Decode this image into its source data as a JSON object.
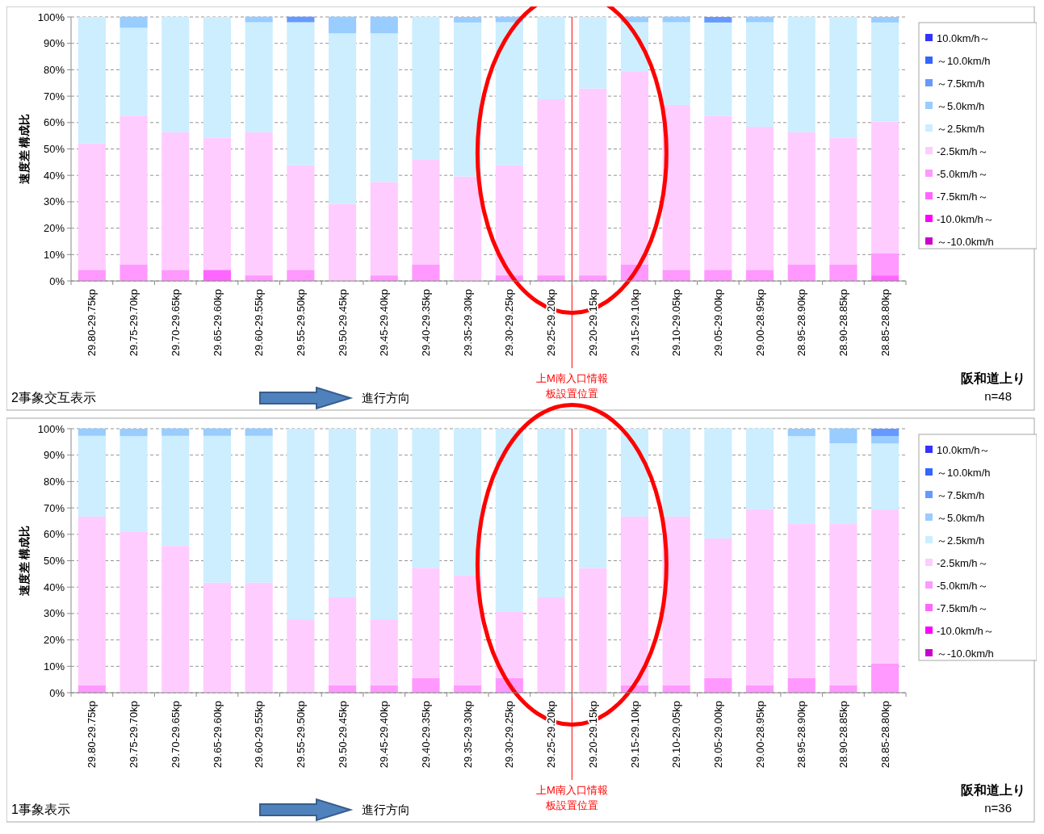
{
  "chart_data": [
    {
      "type": "bar",
      "stacked": true,
      "ylabel": "速度差 構成比",
      "ylim": [
        0,
        100
      ],
      "grid": "y",
      "legend": "right",
      "yticks": [
        {
          "value": 0,
          "label": "0%"
        },
        {
          "value": 10,
          "label": "10%"
        },
        {
          "value": 20,
          "label": "20%"
        },
        {
          "value": 30,
          "label": "30%"
        },
        {
          "value": 40,
          "label": "40%"
        },
        {
          "value": 50,
          "label": "50%"
        },
        {
          "value": 60,
          "label": "60%"
        },
        {
          "value": 70,
          "label": "70%"
        },
        {
          "value": 80,
          "label": "80%"
        },
        {
          "value": 90,
          "label": "90%"
        },
        {
          "value": 100,
          "label": "100%"
        }
      ],
      "categories": [
        "29.80-29.75kp",
        "29.75-29.70kp",
        "29.70-29.65kp",
        "29.65-29.60kp",
        "29.60-29.55kp",
        "29.55-29.50kp",
        "29.50-29.45kp",
        "29.45-29.40kp",
        "29.40-29.35kp",
        "29.35-29.30kp",
        "29.30-29.25kp",
        "29.25-29.20kp",
        "29.20-29.15kp",
        "29.15-29.10kp",
        "29.10-29.05kp",
        "29.05-29.00kp",
        "29.00-28.95kp",
        "28.95-28.90kp",
        "28.90-28.85kp",
        "28.85-28.80kp"
      ],
      "series": [
        {
          "name": "～-10.0km/h",
          "color": "#cc00cc",
          "values": [
            0,
            0,
            0,
            0,
            0,
            0,
            0,
            0,
            0,
            0,
            0,
            0,
            0,
            0,
            0,
            0,
            0,
            0,
            0,
            0
          ]
        },
        {
          "name": "-10.0km/h～",
          "color": "#ff00ff",
          "values": [
            0,
            0,
            0,
            0,
            0,
            0,
            0,
            0,
            0,
            0,
            0,
            0,
            0,
            0,
            0,
            0,
            0,
            0,
            0,
            0
          ]
        },
        {
          "name": "-7.5km/h～",
          "color": "#ff66ff",
          "values": [
            0,
            0,
            0,
            4.2,
            0,
            0,
            0,
            0,
            0,
            0,
            0,
            0,
            0,
            0,
            0,
            0,
            0,
            0,
            0,
            2.1
          ]
        },
        {
          "name": "-5.0km/h～",
          "color": "#ff99ff",
          "values": [
            4.2,
            6.3,
            4.2,
            0,
            2.1,
            4.2,
            0,
            2.1,
            6.3,
            0,
            2.1,
            2.1,
            2.1,
            6.3,
            4.2,
            4.2,
            4.2,
            6.3,
            6.3,
            8.3
          ]
        },
        {
          "name": "-2.5km/h～",
          "color": "#ffccff",
          "values": [
            47.9,
            56.3,
            52.1,
            50,
            54.2,
            39.6,
            29.2,
            35.4,
            39.6,
            39.6,
            41.7,
            66.7,
            70.8,
            72.9,
            62.5,
            58.3,
            54.2,
            50,
            47.9,
            50
          ]
        },
        {
          "name": "～2.5km/h",
          "color": "#cceeff",
          "values": [
            47.9,
            33.3,
            43.8,
            45.8,
            41.7,
            54.2,
            64.6,
            56.3,
            54.2,
            58.3,
            54.2,
            31.3,
            27.1,
            18.8,
            31.3,
            35.4,
            39.6,
            43.8,
            45.8,
            37.5
          ]
        },
        {
          "name": "～5.0km/h",
          "color": "#99ccff",
          "values": [
            0,
            4.2,
            0,
            0,
            2.1,
            0,
            6.3,
            6.3,
            0,
            2.1,
            2.1,
            0,
            0,
            2.1,
            2.1,
            0,
            2.1,
            0,
            0,
            2.1
          ]
        },
        {
          "name": "～7.5km/h",
          "color": "#6699ff",
          "values": [
            0,
            0,
            0,
            0,
            0,
            2.1,
            0,
            0,
            0,
            0,
            0,
            0,
            0,
            0,
            0,
            2.1,
            0,
            0,
            0,
            0
          ]
        },
        {
          "name": "～10.0km/h",
          "color": "#3366ff",
          "values": [
            0,
            0,
            0,
            0,
            0,
            0,
            0,
            0,
            0,
            0,
            0,
            0,
            0,
            0,
            0,
            0,
            0,
            0,
            0,
            0
          ]
        },
        {
          "name": "10.0km/h～",
          "color": "#3333ff",
          "values": [
            0,
            0,
            0,
            0,
            0,
            0,
            0,
            0,
            0,
            0,
            0,
            0,
            0,
            0,
            0,
            0,
            0,
            0,
            0,
            0
          ]
        }
      ],
      "ref_lines": [
        {
          "axis": "x",
          "value": "29.20-29.15kp",
          "label": "上M南入口情報板設置位置",
          "color": "#ff0000"
        }
      ],
      "annotations": [
        "2事象交互表示",
        "進行方向",
        "阪和道上り",
        "n=48"
      ]
    },
    {
      "type": "bar",
      "stacked": true,
      "ylabel": "速度差 構成比",
      "ylim": [
        0,
        100
      ],
      "grid": "y",
      "legend": "right",
      "yticks": [
        {
          "value": 0,
          "label": "0%"
        },
        {
          "value": 10,
          "label": "10%"
        },
        {
          "value": 20,
          "label": "20%"
        },
        {
          "value": 30,
          "label": "30%"
        },
        {
          "value": 40,
          "label": "40%"
        },
        {
          "value": 50,
          "label": "50%"
        },
        {
          "value": 60,
          "label": "60%"
        },
        {
          "value": 70,
          "label": "70%"
        },
        {
          "value": 80,
          "label": "80%"
        },
        {
          "value": 90,
          "label": "90%"
        },
        {
          "value": 100,
          "label": "100%"
        }
      ],
      "categories": [
        "29.80-29.75kp",
        "29.75-29.70kp",
        "29.70-29.65kp",
        "29.65-29.60kp",
        "29.60-29.55kp",
        "29.55-29.50kp",
        "29.50-29.45kp",
        "29.45-29.40kp",
        "29.40-29.35kp",
        "29.35-29.30kp",
        "29.30-29.25kp",
        "29.25-29.20kp",
        "29.20-29.15kp",
        "29.15-29.10kp",
        "29.10-29.05kp",
        "29.05-29.00kp",
        "29.00-28.95kp",
        "28.95-28.90kp",
        "28.90-28.85kp",
        "28.85-28.80kp"
      ],
      "series": [
        {
          "name": "～-10.0km/h",
          "color": "#cc00cc",
          "values": [
            0,
            0,
            0,
            0,
            0,
            0,
            0,
            0,
            0,
            0,
            0,
            0,
            0,
            0,
            0,
            0,
            0,
            0,
            0,
            0
          ]
        },
        {
          "name": "-10.0km/h～",
          "color": "#ff00ff",
          "values": [
            0,
            0,
            0,
            0,
            0,
            0,
            0,
            0,
            0,
            0,
            0,
            0,
            0,
            0,
            0,
            0,
            0,
            0,
            0,
            0
          ]
        },
        {
          "name": "-7.5km/h～",
          "color": "#ff66ff",
          "values": [
            0,
            0,
            0,
            0,
            0,
            0,
            0,
            0,
            0,
            0,
            0,
            0,
            0,
            0,
            0,
            0,
            0,
            0,
            0,
            0
          ]
        },
        {
          "name": "-5.0km/h～",
          "color": "#ff99ff",
          "values": [
            2.8,
            0,
            0,
            0,
            0,
            0,
            2.8,
            2.8,
            5.6,
            2.8,
            5.6,
            0,
            0,
            2.8,
            2.8,
            5.6,
            2.8,
            5.6,
            2.8,
            11.1
          ]
        },
        {
          "name": "-2.5km/h～",
          "color": "#ffccff",
          "values": [
            63.9,
            61.1,
            55.6,
            41.7,
            41.7,
            27.8,
            33.3,
            25,
            41.7,
            41.7,
            25,
            36.1,
            47.2,
            63.9,
            63.9,
            52.8,
            66.7,
            58.3,
            61.1,
            58.3
          ]
        },
        {
          "name": "～2.5km/h",
          "color": "#cceeff",
          "values": [
            30.6,
            36.1,
            41.7,
            55.6,
            55.6,
            72.2,
            63.9,
            72.2,
            52.8,
            55.6,
            69.4,
            63.9,
            52.8,
            33.3,
            33.3,
            41.7,
            30.6,
            33.3,
            30.6,
            25
          ]
        },
        {
          "name": "～5.0km/h",
          "color": "#99ccff",
          "values": [
            2.8,
            2.8,
            2.8,
            2.8,
            2.8,
            0,
            0,
            0,
            0,
            0,
            0,
            0,
            0,
            0,
            0,
            0,
            0,
            2.8,
            5.6,
            2.8
          ]
        },
        {
          "name": "～7.5km/h",
          "color": "#6699ff",
          "values": [
            0,
            0,
            0,
            0,
            0,
            0,
            0,
            0,
            0,
            0,
            0,
            0,
            0,
            0,
            0,
            0,
            0,
            0,
            0,
            2.8
          ]
        },
        {
          "name": "～10.0km/h",
          "color": "#3366ff",
          "values": [
            0,
            0,
            0,
            0,
            0,
            0,
            0,
            0,
            0,
            0,
            0,
            0,
            0,
            0,
            0,
            0,
            0,
            0,
            0,
            0
          ]
        },
        {
          "name": "10.0km/h～",
          "color": "#3333ff",
          "values": [
            0,
            0,
            0,
            0,
            0,
            0,
            0,
            0,
            0,
            0,
            0,
            0,
            0,
            0,
            0,
            0,
            0,
            0,
            0,
            0
          ]
        }
      ],
      "ref_lines": [
        {
          "axis": "x",
          "value": "29.20-29.15kp",
          "label": "上M南入口情報板設置位置",
          "color": "#ff0000"
        }
      ],
      "annotations": [
        "1事象表示",
        "進行方向",
        "阪和道上り",
        "n=36"
      ]
    }
  ]
}
